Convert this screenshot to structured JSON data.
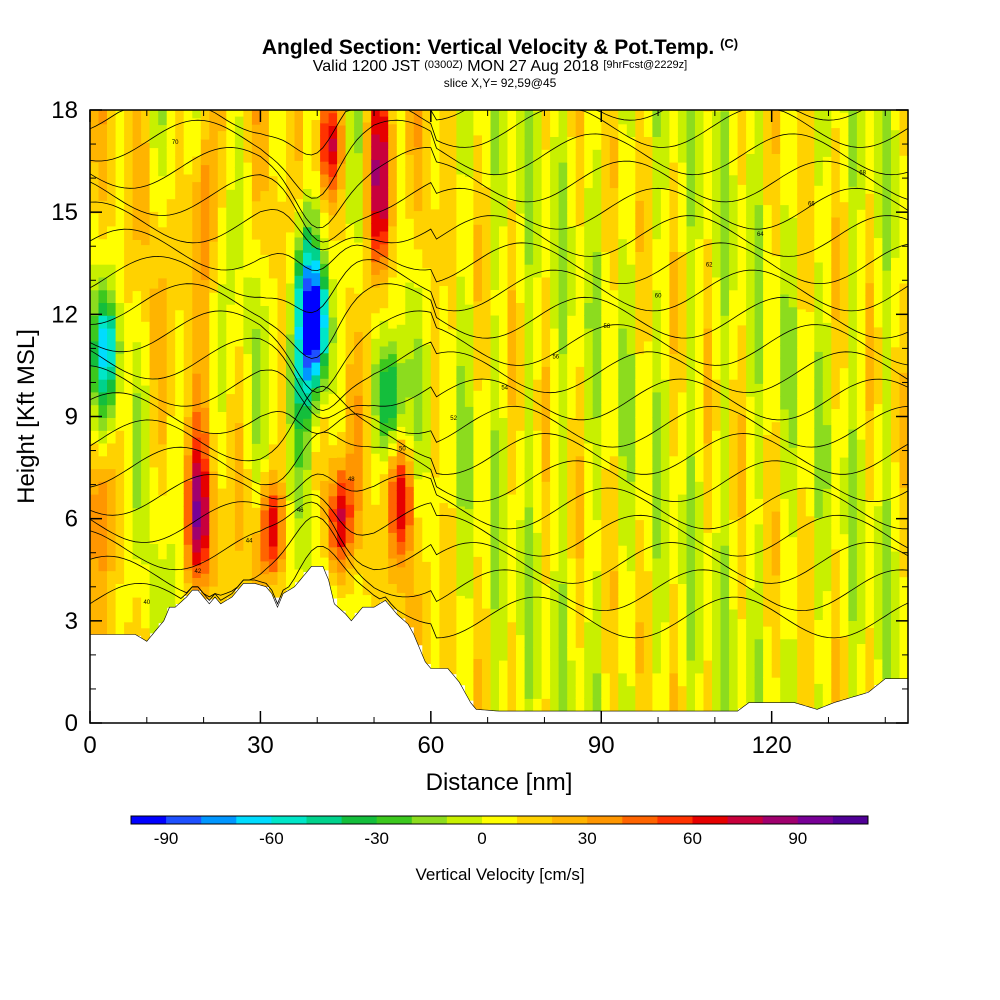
{
  "header": {
    "title_main": "Angled Section: Vertical Velocity & Pot.Temp.",
    "title_tag": "(C)",
    "valid_prefix": "Valid 1200 JST",
    "valid_utc": "(0300Z)",
    "valid_date": "MON 27 Aug 2018",
    "forecast": "[9hrFcst@2229z]",
    "slice": "slice X,Y= 92,59@45"
  },
  "chart_data": {
    "type": "heatmap",
    "xlabel": "Distance [nm]",
    "ylabel": "Height [Kft MSL]",
    "xlim": [
      0,
      144
    ],
    "ylim": [
      0,
      18
    ],
    "x_ticks": [
      0,
      30,
      60,
      90,
      120
    ],
    "y_ticks": [
      0,
      3,
      6,
      9,
      12,
      15,
      18
    ],
    "colorbar": {
      "title": "Vertical Velocity [cm/s]",
      "range": [
        -100,
        110
      ],
      "ticks": [
        -90,
        -60,
        -30,
        0,
        30,
        60,
        90
      ],
      "colors": [
        "#0000ff",
        "#1e50ff",
        "#0096ff",
        "#00dcff",
        "#00e6c8",
        "#00d28c",
        "#14be3c",
        "#3cc81e",
        "#8cdc1e",
        "#c8f000",
        "#ffff00",
        "#ffd200",
        "#ffb400",
        "#ff9600",
        "#ff6400",
        "#ff3200",
        "#e60000",
        "#c8003c",
        "#a0006e",
        "#780096",
        "#500096"
      ]
    },
    "field_features": [
      {
        "kind": "updraft",
        "x": 19,
        "y_range": [
          4.5,
          7.5
        ],
        "peak": 85
      },
      {
        "kind": "updraft",
        "x": 32,
        "y_range": [
          5,
          6.5
        ],
        "peak": 70
      },
      {
        "kind": "updraft",
        "x": 44,
        "y_range": [
          5,
          7
        ],
        "peak": 80
      },
      {
        "kind": "updraft",
        "x": 55,
        "y_range": [
          5.5,
          7.5
        ],
        "peak": 60
      },
      {
        "kind": "updraft",
        "x": 51,
        "y_range": [
          13.5,
          18
        ],
        "peak": 90
      },
      {
        "kind": "updraft",
        "x": 42,
        "y_range": [
          16,
          18
        ],
        "peak": 80
      },
      {
        "kind": "updraft",
        "x": 20,
        "y_range": [
          13,
          17.5
        ],
        "peak": 55
      },
      {
        "kind": "updraft",
        "x": 2,
        "y_range": [
          5,
          8
        ],
        "peak": 45
      },
      {
        "kind": "downdraft",
        "x": 40,
        "y_range": [
          10.5,
          13
        ],
        "peak": -95
      },
      {
        "kind": "downdraft",
        "x": 38,
        "y_range": [
          9.5,
          14.5
        ],
        "peak": -65
      },
      {
        "kind": "downdraft",
        "x": 3,
        "y_range": [
          10,
          12
        ],
        "peak": -55
      },
      {
        "kind": "downdraft",
        "x": 53,
        "y_range": [
          8.5,
          10.5
        ],
        "peak": -45
      }
    ],
    "contour_labels": [
      "40",
      "42",
      "44",
      "46",
      "48",
      "50",
      "52",
      "54",
      "56",
      "58",
      "60",
      "62",
      "64",
      "66",
      "68",
      "70"
    ]
  }
}
